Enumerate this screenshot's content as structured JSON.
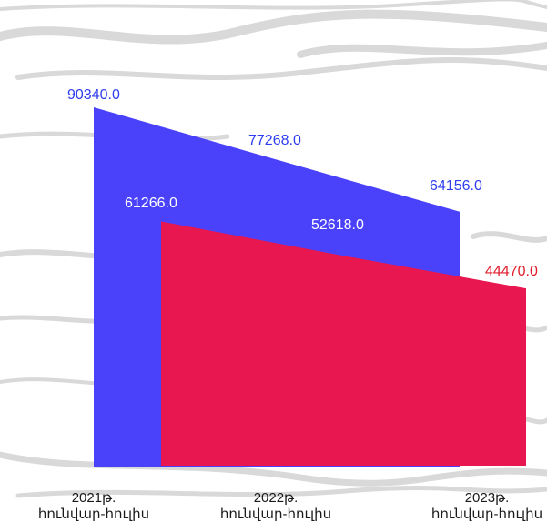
{
  "chart_data": {
    "type": "area",
    "categories": [
      [
        "2021թ.",
        "հունվար-հուլիս"
      ],
      [
        "2022թ.",
        "հունվար-հուլիս"
      ],
      [
        "2023թ.",
        "հունվար-հուլիս"
      ]
    ],
    "series": [
      {
        "values": [
          90340.0,
          77268.0,
          64156.0
        ],
        "color": "#4a42fb",
        "label_color": "#2f3df0"
      },
      {
        "values": [
          61266.0,
          52618.0,
          44470.0
        ],
        "color": "#e8174f",
        "label_color": "#ffffff",
        "last_label_color": "#e01b2a"
      }
    ],
    "data_labels": {
      "series_0": [
        "90340.0",
        "77268.0",
        "64156.0"
      ],
      "series_1": [
        "61266.0",
        "52618.0",
        "44470.0"
      ]
    },
    "ylim": [
      0,
      90340
    ],
    "grid": false,
    "legend": "none",
    "background": "textured-light-gray"
  }
}
